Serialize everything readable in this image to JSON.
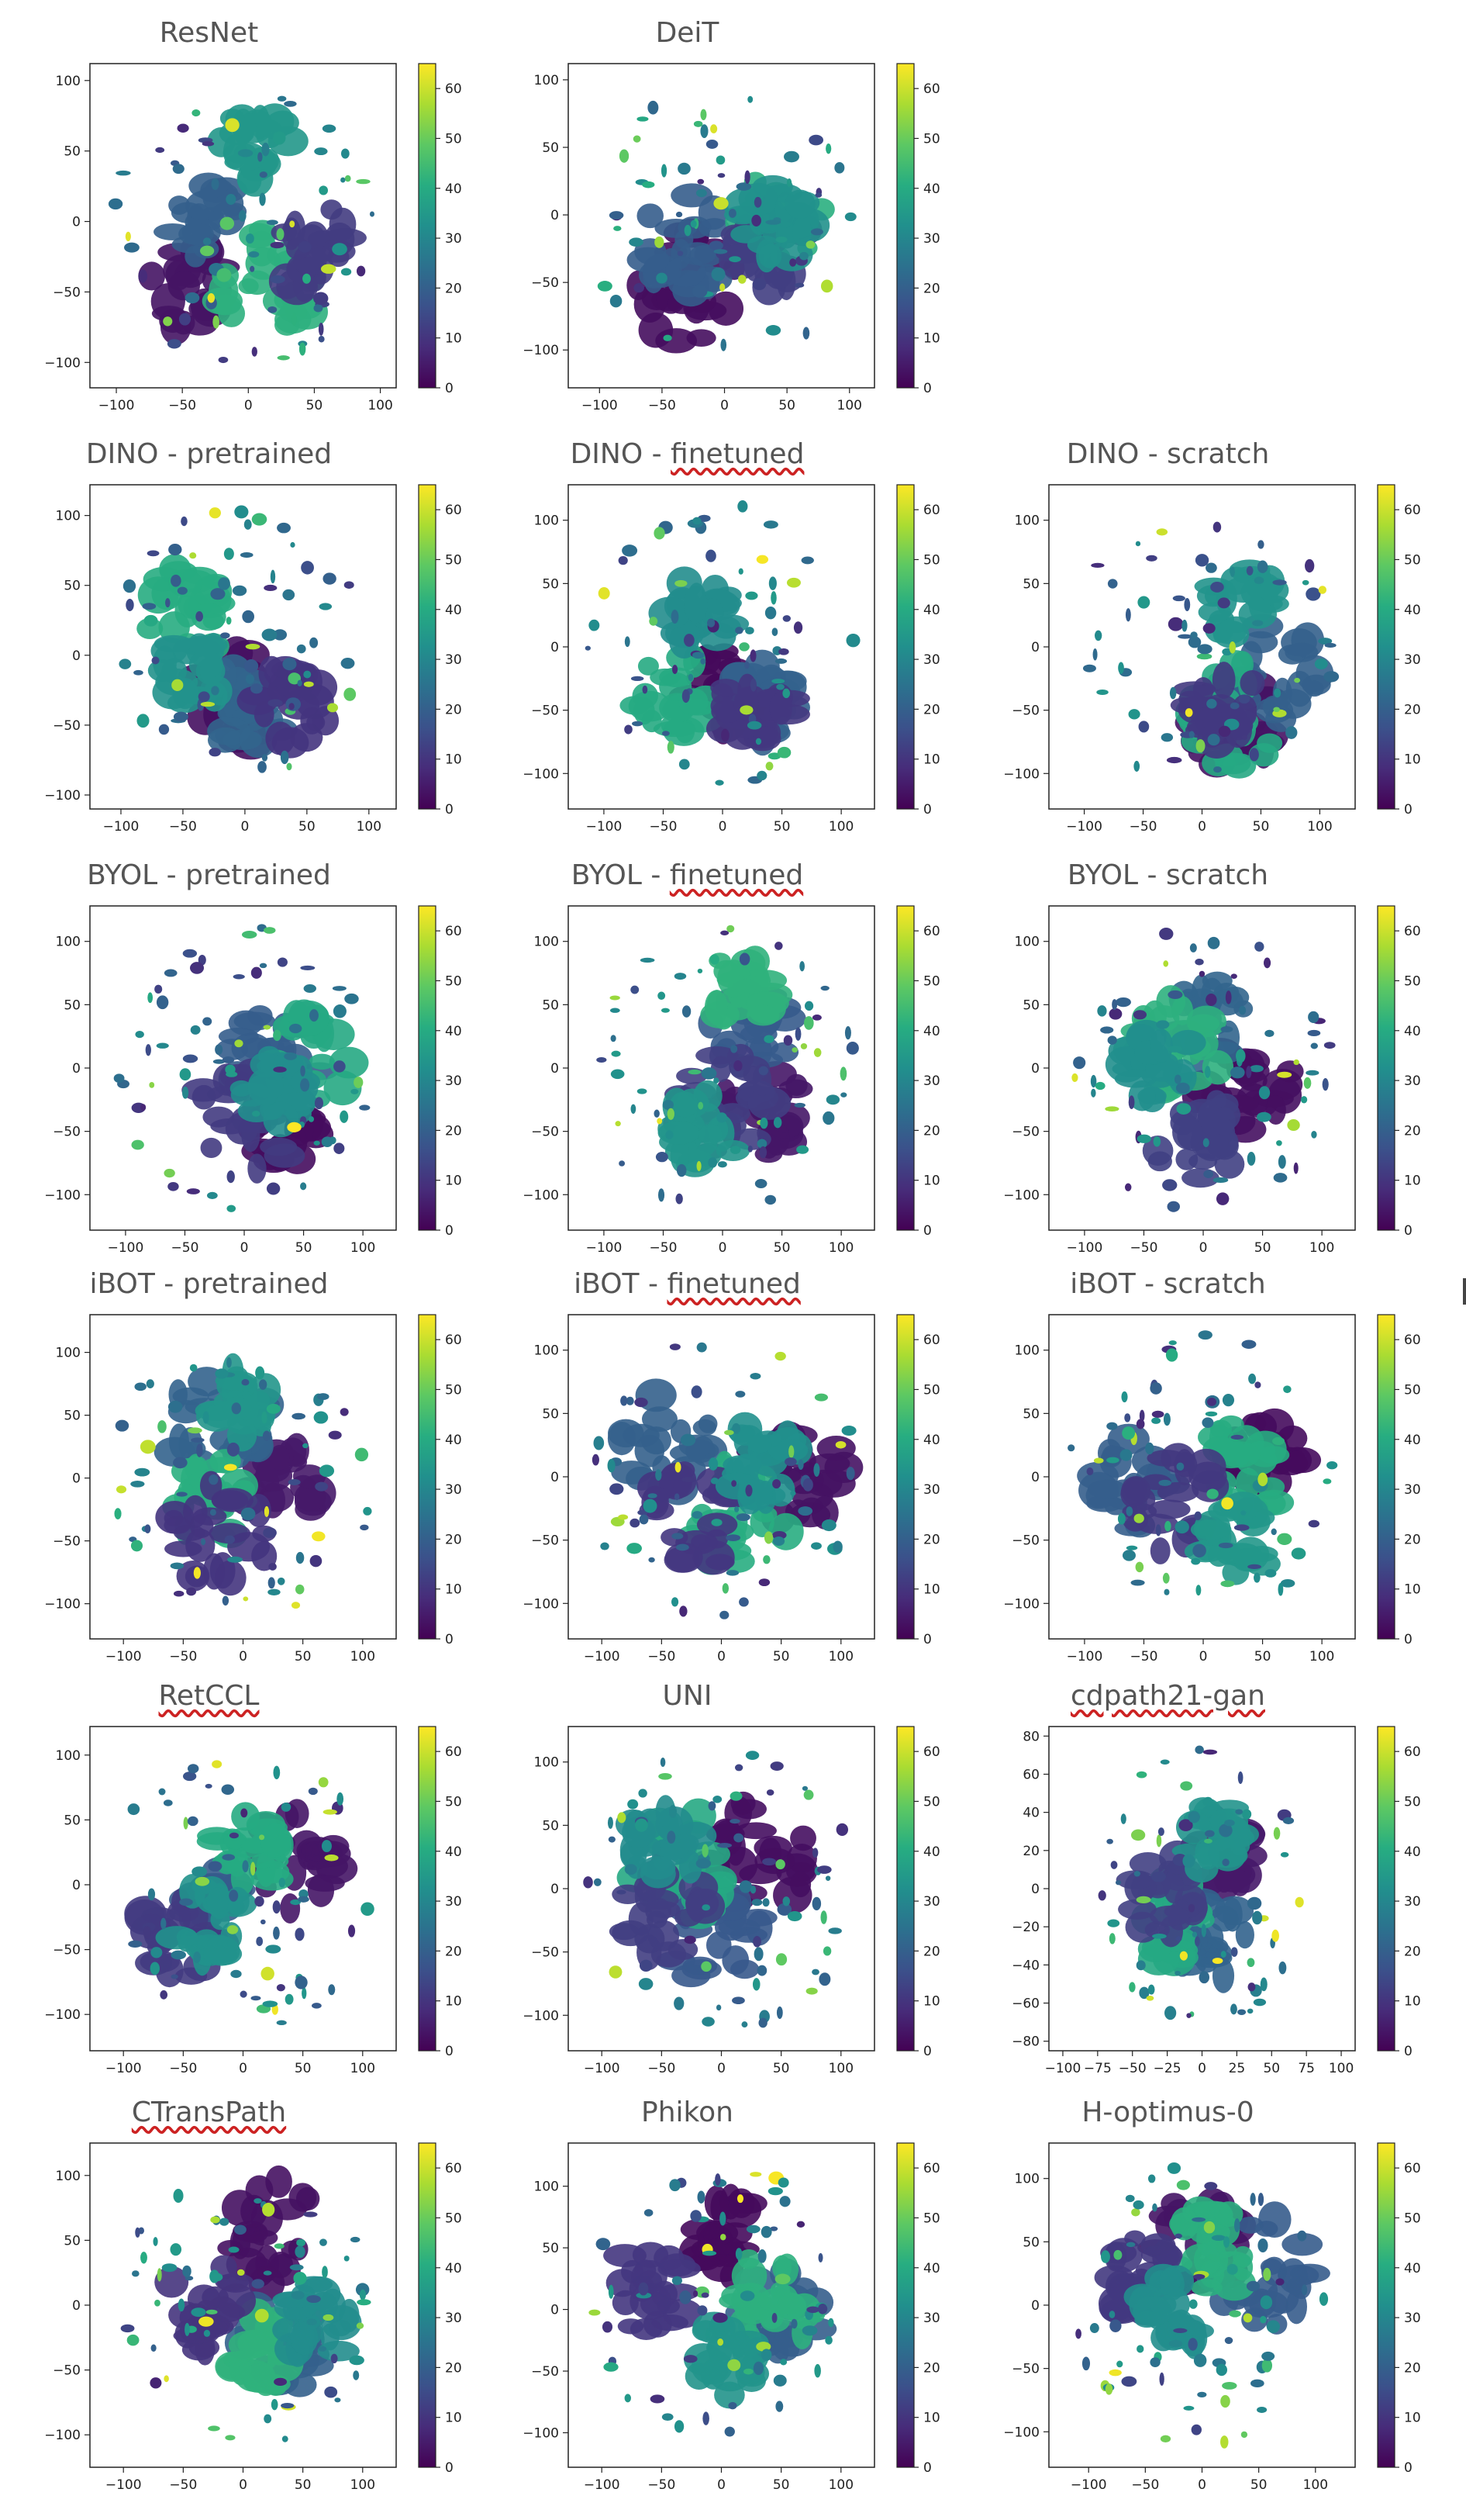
{
  "colormap": "viridis",
  "colorbar": {
    "ticks": [
      0,
      10,
      20,
      30,
      40,
      50,
      60
    ],
    "range": [
      0,
      65
    ]
  },
  "chart_data": [
    {
      "type": "scatter",
      "title": "ResNet",
      "title_marked": "",
      "x_ticks": [
        -100,
        -50,
        0,
        50,
        100
      ],
      "y_ticks": [
        -100,
        -50,
        0,
        50,
        100
      ],
      "xlim": [
        -120,
        112
      ],
      "ylim": [
        -118,
        112
      ]
    },
    {
      "type": "scatter",
      "title": "DeiT",
      "title_marked": "",
      "x_ticks": [
        -100,
        -50,
        0,
        50,
        100
      ],
      "y_ticks": [
        -100,
        -50,
        0,
        50,
        100
      ],
      "xlim": [
        -125,
        120
      ],
      "ylim": [
        -128,
        112
      ]
    },
    null,
    {
      "type": "scatter",
      "title": "DINO - pretrained",
      "title_marked": "",
      "x_ticks": [
        -100,
        -50,
        0,
        50,
        100
      ],
      "y_ticks": [
        -100,
        -50,
        0,
        50,
        100
      ],
      "xlim": [
        -125,
        122
      ],
      "ylim": [
        -110,
        122
      ]
    },
    {
      "type": "scatter",
      "title": "DINO - ",
      "title_marked": "finetuned",
      "x_ticks": [
        -100,
        -50,
        0,
        50,
        100
      ],
      "y_ticks": [
        -100,
        -50,
        0,
        50,
        100
      ],
      "xlim": [
        -130,
        128
      ],
      "ylim": [
        -128,
        128
      ]
    },
    {
      "type": "scatter",
      "title": "DINO - scratch",
      "title_marked": "",
      "x_ticks": [
        -100,
        -50,
        0,
        50,
        100
      ],
      "y_ticks": [
        -100,
        -50,
        0,
        50,
        100
      ],
      "xlim": [
        -130,
        130
      ],
      "ylim": [
        -128,
        128
      ]
    },
    {
      "type": "scatter",
      "title": "BYOL - pretrained",
      "title_marked": "",
      "x_ticks": [
        -100,
        -50,
        0,
        50,
        100
      ],
      "y_ticks": [
        -100,
        -50,
        0,
        50,
        100
      ],
      "xlim": [
        -130,
        128
      ],
      "ylim": [
        -128,
        128
      ]
    },
    {
      "type": "scatter",
      "title": "BYOL - ",
      "title_marked": "finetuned",
      "x_ticks": [
        -100,
        -50,
        0,
        50,
        100
      ],
      "y_ticks": [
        -100,
        -50,
        0,
        50,
        100
      ],
      "xlim": [
        -130,
        128
      ],
      "ylim": [
        -128,
        128
      ]
    },
    {
      "type": "scatter",
      "title": "BYOL - scratch",
      "title_marked": "",
      "x_ticks": [
        -100,
        -50,
        0,
        50,
        100
      ],
      "y_ticks": [
        -100,
        -50,
        0,
        50,
        100
      ],
      "xlim": [
        -130,
        128
      ],
      "ylim": [
        -128,
        128
      ]
    },
    {
      "type": "scatter",
      "title": "iBOT - pretrained",
      "title_marked": "",
      "x_ticks": [
        -100,
        -50,
        0,
        50,
        100
      ],
      "y_ticks": [
        -100,
        -50,
        0,
        50,
        100
      ],
      "xlim": [
        -128,
        128
      ],
      "ylim": [
        -128,
        130
      ]
    },
    {
      "type": "scatter",
      "title": "iBOT - ",
      "title_marked": "finetuned",
      "x_ticks": [
        -100,
        -50,
        0,
        50,
        100
      ],
      "y_ticks": [
        -100,
        -50,
        0,
        50,
        100
      ],
      "xlim": [
        -128,
        128
      ],
      "ylim": [
        -128,
        128
      ]
    },
    {
      "type": "scatter",
      "title": "iBOT - scratch",
      "title_marked": "",
      "x_ticks": [
        -100,
        -50,
        0,
        50,
        100
      ],
      "y_ticks": [
        -100,
        -50,
        0,
        50,
        100
      ],
      "xlim": [
        -130,
        128
      ],
      "ylim": [
        -128,
        128
      ]
    },
    {
      "type": "scatter",
      "title": "",
      "title_marked": "RetCCL",
      "x_ticks": [
        -100,
        -50,
        0,
        50,
        100
      ],
      "y_ticks": [
        -100,
        -50,
        0,
        50,
        100
      ],
      "xlim": [
        -128,
        128
      ],
      "ylim": [
        -128,
        122
      ]
    },
    {
      "type": "scatter",
      "title": "UNI",
      "title_marked": "",
      "x_ticks": [
        -100,
        -50,
        0,
        50,
        100
      ],
      "y_ticks": [
        -100,
        -50,
        0,
        50,
        100
      ],
      "xlim": [
        -128,
        128
      ],
      "ylim": [
        -128,
        128
      ]
    },
    {
      "type": "scatter",
      "title": "",
      "title_marked": "cdpath21-gan",
      "x_ticks": [
        -100,
        -75,
        -50,
        -25,
        0,
        25,
        50,
        75,
        100
      ],
      "y_ticks": [
        -80,
        -60,
        -40,
        -20,
        0,
        20,
        40,
        60,
        80
      ],
      "xlim": [
        -110,
        110
      ],
      "ylim": [
        -85,
        85
      ]
    },
    {
      "type": "scatter",
      "title": "",
      "title_marked": "CTransPath",
      "x_ticks": [
        -100,
        -50,
        0,
        50,
        100
      ],
      "y_ticks": [
        -100,
        -50,
        0,
        50,
        100
      ],
      "xlim": [
        -128,
        128
      ],
      "ylim": [
        -125,
        125
      ]
    },
    {
      "type": "scatter",
      "title": "Phikon",
      "title_marked": "",
      "x_ticks": [
        -100,
        -50,
        0,
        50,
        100
      ],
      "y_ticks": [
        -100,
        -50,
        0,
        50,
        100
      ],
      "xlim": [
        -128,
        128
      ],
      "ylim": [
        -128,
        135
      ]
    },
    {
      "type": "scatter",
      "title": "H-optimus-0",
      "title_marked": "",
      "x_ticks": [
        -100,
        -50,
        0,
        50,
        100
      ],
      "y_ticks": [
        -100,
        -50,
        0,
        50,
        100
      ],
      "xlim": [
        -135,
        135
      ],
      "ylim": [
        -128,
        128
      ]
    }
  ]
}
